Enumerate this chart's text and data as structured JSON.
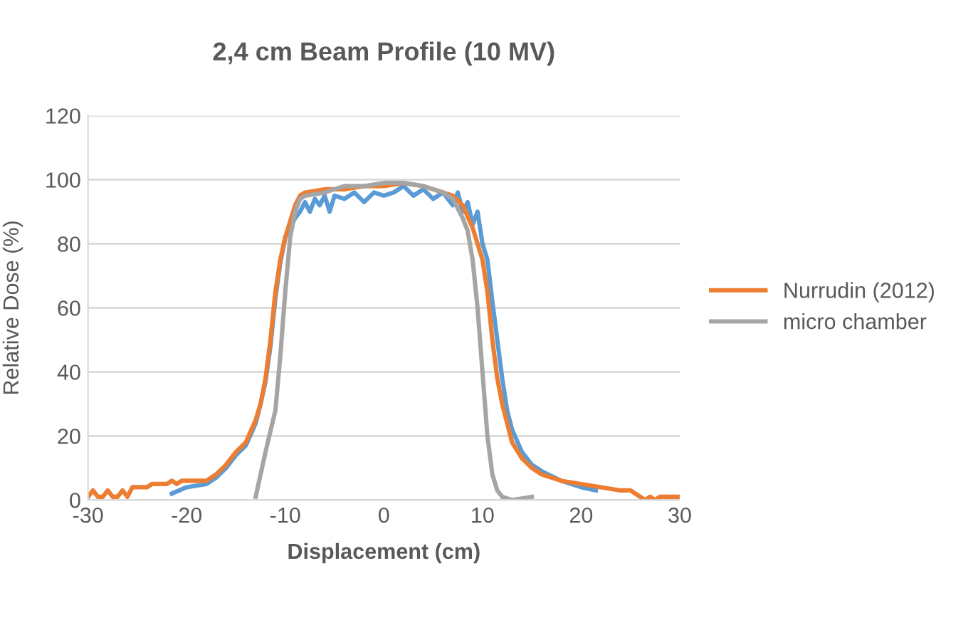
{
  "chart_data": {
    "type": "line",
    "title": "2,4 cm Beam Profile (10 MV)",
    "xlabel": "Displacement (cm)",
    "ylabel": "Relative Dose (%)",
    "xlim": [
      -30,
      30
    ],
    "xticks": [
      -30,
      -20,
      -10,
      0,
      10,
      20,
      30
    ],
    "ylim": [
      0,
      120
    ],
    "yticks": [
      0,
      20,
      40,
      60,
      80,
      100,
      120
    ],
    "grid": "y",
    "legend": "right",
    "marker": "none",
    "line_style": "solid",
    "series": [
      {
        "color": "#5b9bd5",
        "x": [
          -21.5,
          -20,
          -18,
          -17,
          -16,
          -15,
          -14,
          -13,
          -12.5,
          -12,
          -11.5,
          -11,
          -10.5,
          -10,
          -9.5,
          -9,
          -8.5,
          -8,
          -7.5,
          -7,
          -6.5,
          -6,
          -5.5,
          -5,
          -4,
          -3,
          -2,
          -1,
          0,
          1,
          2,
          3,
          4,
          5,
          6,
          7,
          7.5,
          8,
          8.5,
          9,
          9.5,
          10,
          10.5,
          11,
          11.5,
          12,
          12.5,
          13,
          14,
          15,
          16,
          18,
          20,
          21.5
        ],
        "values": [
          2,
          4,
          5,
          7,
          10,
          14,
          17,
          24,
          30,
          37,
          48,
          63,
          74,
          82,
          85,
          88,
          90,
          93,
          90,
          94,
          92,
          95,
          90,
          95,
          94,
          96,
          93,
          96,
          95,
          96,
          98,
          95,
          97,
          94,
          96,
          92,
          96,
          90,
          93,
          86,
          90,
          80,
          75,
          62,
          50,
          38,
          28,
          22,
          15,
          11,
          9,
          6,
          4,
          3
        ]
      },
      {
        "name": "Nurrudin (2012)",
        "color": "#ed7d31",
        "x": [
          -30,
          -29.5,
          -29,
          -28.5,
          -28,
          -27.5,
          -27,
          -26.5,
          -26,
          -25.5,
          -24,
          -23.5,
          -22,
          -21.5,
          -21,
          -20.5,
          -18,
          -17,
          -16,
          -15,
          -14,
          -13,
          -12.5,
          -12,
          -11.5,
          -11,
          -10.5,
          -10,
          -9.5,
          -9,
          -8.5,
          -8,
          -6,
          -4,
          -2,
          0,
          2,
          4,
          6,
          7,
          8,
          9,
          10,
          10.5,
          11,
          11.5,
          12,
          12.5,
          13,
          14,
          15,
          16,
          17,
          18,
          20,
          22,
          24,
          25,
          25.5,
          26,
          26.5,
          27,
          27.5,
          28,
          30
        ],
        "values": [
          1,
          3,
          1,
          1,
          3,
          1,
          1,
          3,
          1,
          4,
          4,
          5,
          5,
          6,
          5,
          6,
          6,
          8,
          11,
          15,
          18,
          25,
          30,
          38,
          50,
          65,
          75,
          82,
          87,
          92,
          95,
          96,
          97,
          97,
          98,
          98,
          99,
          98,
          96,
          95,
          92,
          85,
          75,
          65,
          50,
          38,
          30,
          24,
          18,
          13,
          10,
          8,
          7,
          6,
          5,
          4,
          3,
          3,
          2,
          1,
          0,
          1,
          0,
          1,
          1
        ]
      },
      {
        "name": "micro chamber",
        "color": "#a5a5a5",
        "x": [
          -13,
          -12,
          -11,
          -10.5,
          -10,
          -9.5,
          -9,
          -8.5,
          -8,
          -6,
          -4,
          -2,
          0,
          2,
          4,
          6,
          7,
          8,
          8.5,
          9,
          9.5,
          10,
          10.5,
          11,
          11.5,
          12,
          13,
          14,
          15
        ],
        "values": [
          1,
          15,
          28,
          45,
          65,
          82,
          90,
          94,
          95,
          96,
          98,
          98,
          99,
          99,
          98,
          96,
          94,
          88,
          84,
          75,
          60,
          40,
          20,
          8,
          3,
          1,
          0,
          0.5,
          1
        ]
      }
    ]
  }
}
